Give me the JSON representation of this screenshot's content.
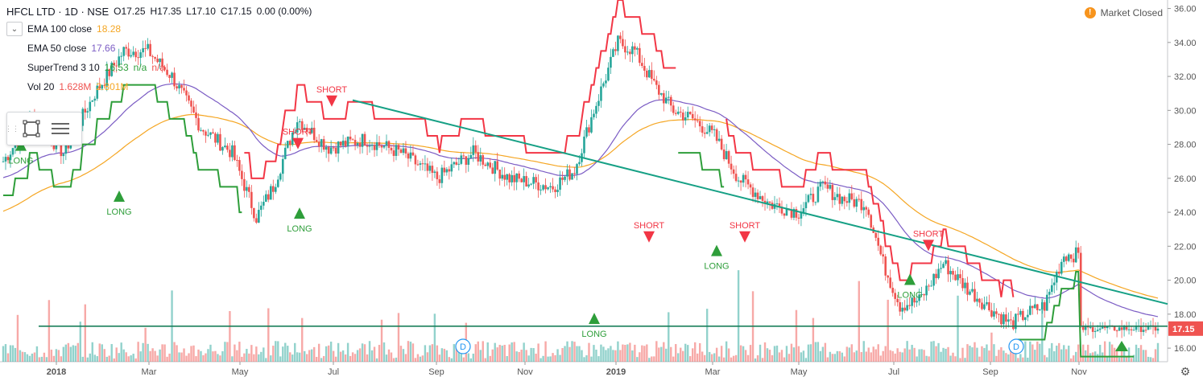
{
  "header": {
    "symbol": "HFCL LTD · 1D · NSE",
    "open": "O17.25",
    "high": "H17.35",
    "low": "L17.10",
    "close": "C17.15",
    "change": "0.00 (0.00%)"
  },
  "indicators": [
    {
      "name": "EMA 100 close",
      "value": "18.28",
      "color": "#f5a623"
    },
    {
      "name": "EMA 50 close",
      "value": "17.66",
      "color": "#7b5cc4"
    },
    {
      "name": "SuperTrend 3 10",
      "value": "16.53",
      "extra1": "n/a",
      "extra2": "n/a",
      "color": "#2e9e3a"
    },
    {
      "name": "Vol 20",
      "value": "1.628M",
      "extra1": "2.801M",
      "color": "#ef5350"
    }
  ],
  "status": {
    "label": "Market Closed",
    "icon": "!"
  },
  "price_tag": "17.15",
  "colors": {
    "up": "#26a69a",
    "down": "#ef5350",
    "ema100": "#f5a623",
    "ema50": "#7b5cc4",
    "st_up": "#2e9e3a",
    "st_down": "#f23645",
    "trend": "#16a085",
    "support": "#1b7f5a"
  },
  "chart_data": {
    "type": "candlestick",
    "title": "HFCL LTD · 1D · NSE",
    "x_ticks": [
      "2018",
      "Mar",
      "May",
      "Jul",
      "Sep",
      "Nov",
      "2019",
      "Mar",
      "May",
      "Jul",
      "Sep",
      "Nov"
    ],
    "y_ticks": [
      "16.00",
      "18.00",
      "20.00",
      "22.00",
      "24.00",
      "26.00",
      "28.00",
      "30.00",
      "32.00",
      "34.00",
      "36.00"
    ],
    "ylim": [
      15.2,
      36.5
    ],
    "n_bars": 480,
    "price_anchors": [
      [
        0,
        27
      ],
      [
        12,
        29.5
      ],
      [
        25,
        27.5
      ],
      [
        38,
        31
      ],
      [
        50,
        33.5
      ],
      [
        60,
        33.5
      ],
      [
        70,
        32
      ],
      [
        82,
        29
      ],
      [
        95,
        27.5
      ],
      [
        105,
        23.7
      ],
      [
        112,
        25.5
      ],
      [
        122,
        29.5
      ],
      [
        135,
        27.8
      ],
      [
        150,
        28.3
      ],
      [
        165,
        27.5
      ],
      [
        180,
        26
      ],
      [
        195,
        27.5
      ],
      [
        210,
        26
      ],
      [
        228,
        25.5
      ],
      [
        237,
        26.5
      ],
      [
        245,
        30
      ],
      [
        255,
        34
      ],
      [
        262,
        33.5
      ],
      [
        270,
        31.5
      ],
      [
        278,
        30
      ],
      [
        286,
        29.5
      ],
      [
        295,
        28.5
      ],
      [
        305,
        26
      ],
      [
        318,
        24.5
      ],
      [
        330,
        24
      ],
      [
        340,
        25.5
      ],
      [
        348,
        24.8
      ],
      [
        358,
        24.5
      ],
      [
        365,
        21
      ],
      [
        372,
        18.5
      ],
      [
        380,
        18.8
      ],
      [
        390,
        21
      ],
      [
        400,
        19.5
      ],
      [
        408,
        18.5
      ],
      [
        418,
        17.4
      ],
      [
        424,
        18
      ],
      [
        432,
        18.5
      ],
      [
        440,
        21.5
      ],
      [
        452,
        21.5
      ],
      [
        460,
        21.5
      ],
      [
        468,
        24.5
      ],
      [
        475,
        23.5
      ]
    ],
    "trend_line": {
      "from": [
        "Jul 2018",
        30.6
      ],
      "to": [
        "Dec 2019",
        18.6
      ]
    },
    "support_line": 17.15,
    "signals": [
      {
        "label": "LONG",
        "type": "buy"
      },
      {
        "label": "LONG",
        "type": "buy"
      },
      {
        "label": "SHORT",
        "type": "sell"
      },
      {
        "label": "LONG",
        "type": "buy"
      },
      {
        "label": "SHORT",
        "type": "sell"
      },
      {
        "label": "LONG",
        "type": "buy"
      },
      {
        "label": "SHORT",
        "type": "sell"
      },
      {
        "label": "SHORT",
        "type": "sell"
      },
      {
        "label": "LONG",
        "type": "buy"
      },
      {
        "label": "LONG",
        "type": "buy"
      },
      {
        "label": "SHORT",
        "type": "sell"
      }
    ],
    "dividend_markers": [
      "D",
      "D"
    ]
  }
}
